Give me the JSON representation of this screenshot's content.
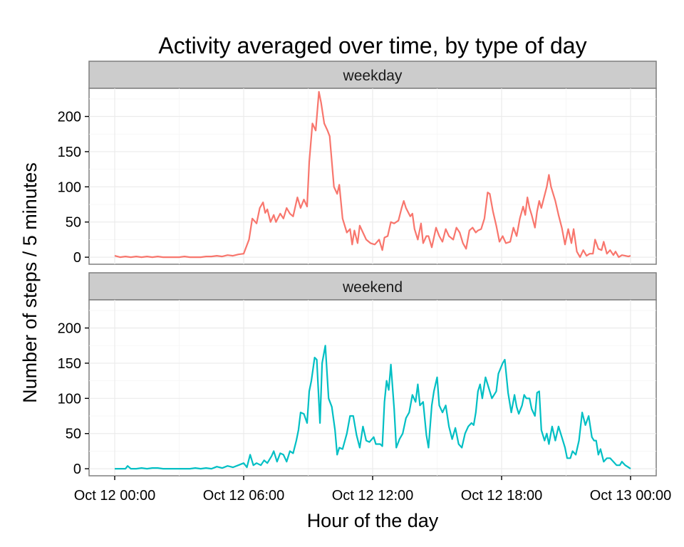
{
  "chart_data": {
    "type": "line",
    "title": "Activity averaged over time, by type of day",
    "xlabel": "Hour of the day",
    "ylabel": "Number of steps / 5 minutes",
    "xlim": [
      0,
      24
    ],
    "ylim": [
      -10,
      240
    ],
    "x_ticks": [
      {
        "value": 0,
        "label": "Oct 12 00:00"
      },
      {
        "value": 6,
        "label": "Oct 12 06:00"
      },
      {
        "value": 12,
        "label": "Oct 12 12:00"
      },
      {
        "value": 18,
        "label": "Oct 12 18:00"
      },
      {
        "value": 24,
        "label": "Oct 13 00:00"
      }
    ],
    "y_ticks": [
      0,
      50,
      100,
      150,
      200
    ],
    "grid": true,
    "legend": "none",
    "series": [
      {
        "name": "weekday",
        "color": "#F8766D",
        "points": [
          [
            0,
            2
          ],
          [
            0.25,
            0
          ],
          [
            0.5,
            1
          ],
          [
            0.75,
            0
          ],
          [
            1,
            1
          ],
          [
            1.25,
            0
          ],
          [
            1.5,
            1
          ],
          [
            1.75,
            0
          ],
          [
            2,
            1
          ],
          [
            2.25,
            0
          ],
          [
            2.5,
            0
          ],
          [
            2.75,
            0
          ],
          [
            3,
            0
          ],
          [
            3.25,
            1
          ],
          [
            3.5,
            0
          ],
          [
            3.75,
            0
          ],
          [
            4,
            0
          ],
          [
            4.25,
            1
          ],
          [
            4.5,
            1
          ],
          [
            4.75,
            2
          ],
          [
            5,
            1
          ],
          [
            5.25,
            3
          ],
          [
            5.5,
            2
          ],
          [
            5.75,
            4
          ],
          [
            6,
            5
          ],
          [
            6.25,
            25
          ],
          [
            6.4,
            55
          ],
          [
            6.6,
            48
          ],
          [
            6.75,
            70
          ],
          [
            6.9,
            78
          ],
          [
            7,
            63
          ],
          [
            7.1,
            68
          ],
          [
            7.25,
            50
          ],
          [
            7.4,
            60
          ],
          [
            7.5,
            50
          ],
          [
            7.7,
            62
          ],
          [
            7.85,
            55
          ],
          [
            8,
            70
          ],
          [
            8.15,
            62
          ],
          [
            8.3,
            58
          ],
          [
            8.5,
            85
          ],
          [
            8.65,
            70
          ],
          [
            8.8,
            82
          ],
          [
            8.95,
            72
          ],
          [
            9.05,
            135
          ],
          [
            9.2,
            190
          ],
          [
            9.35,
            180
          ],
          [
            9.5,
            235
          ],
          [
            9.6,
            220
          ],
          [
            9.75,
            190
          ],
          [
            9.9,
            180
          ],
          [
            10,
            172
          ],
          [
            10.2,
            100
          ],
          [
            10.35,
            90
          ],
          [
            10.45,
            103
          ],
          [
            10.6,
            55
          ],
          [
            10.8,
            35
          ],
          [
            10.95,
            40
          ],
          [
            11.05,
            18
          ],
          [
            11.15,
            38
          ],
          [
            11.3,
            20
          ],
          [
            11.4,
            45
          ],
          [
            11.55,
            35
          ],
          [
            11.7,
            25
          ],
          [
            11.9,
            20
          ],
          [
            12.1,
            18
          ],
          [
            12.3,
            25
          ],
          [
            12.45,
            10
          ],
          [
            12.55,
            28
          ],
          [
            12.7,
            30
          ],
          [
            12.85,
            50
          ],
          [
            13,
            48
          ],
          [
            13.2,
            52
          ],
          [
            13.35,
            70
          ],
          [
            13.45,
            80
          ],
          [
            13.55,
            70
          ],
          [
            13.75,
            58
          ],
          [
            13.85,
            62
          ],
          [
            13.95,
            40
          ],
          [
            14.1,
            25
          ],
          [
            14.25,
            48
          ],
          [
            14.35,
            20
          ],
          [
            14.5,
            30
          ],
          [
            14.6,
            30
          ],
          [
            14.75,
            14
          ],
          [
            14.95,
            42
          ],
          [
            15.1,
            30
          ],
          [
            15.25,
            22
          ],
          [
            15.4,
            40
          ],
          [
            15.55,
            30
          ],
          [
            15.75,
            25
          ],
          [
            15.9,
            42
          ],
          [
            16.05,
            35
          ],
          [
            16.2,
            20
          ],
          [
            16.35,
            12
          ],
          [
            16.5,
            38
          ],
          [
            16.65,
            42
          ],
          [
            16.8,
            35
          ],
          [
            16.9,
            38
          ],
          [
            17.05,
            40
          ],
          [
            17.2,
            55
          ],
          [
            17.35,
            92
          ],
          [
            17.45,
            90
          ],
          [
            17.6,
            65
          ],
          [
            17.75,
            45
          ],
          [
            17.9,
            22
          ],
          [
            18.05,
            30
          ],
          [
            18.2,
            20
          ],
          [
            18.4,
            22
          ],
          [
            18.55,
            42
          ],
          [
            18.7,
            30
          ],
          [
            18.85,
            55
          ],
          [
            19,
            72
          ],
          [
            19.1,
            60
          ],
          [
            19.2,
            85
          ],
          [
            19.3,
            70
          ],
          [
            19.4,
            60
          ],
          [
            19.55,
            42
          ],
          [
            19.65,
            65
          ],
          [
            19.75,
            80
          ],
          [
            19.85,
            70
          ],
          [
            19.95,
            82
          ],
          [
            20.1,
            100
          ],
          [
            20.2,
            117
          ],
          [
            20.3,
            100
          ],
          [
            20.5,
            80
          ],
          [
            20.65,
            60
          ],
          [
            20.8,
            42
          ],
          [
            20.95,
            18
          ],
          [
            21.1,
            40
          ],
          [
            21.25,
            20
          ],
          [
            21.35,
            40
          ],
          [
            21.5,
            8
          ],
          [
            21.65,
            0
          ],
          [
            21.8,
            10
          ],
          [
            21.95,
            2
          ],
          [
            22.1,
            5
          ],
          [
            22.25,
            5
          ],
          [
            22.35,
            25
          ],
          [
            22.5,
            12
          ],
          [
            22.65,
            10
          ],
          [
            22.75,
            22
          ],
          [
            22.9,
            5
          ],
          [
            23.05,
            10
          ],
          [
            23.2,
            3
          ],
          [
            23.3,
            8
          ],
          [
            23.45,
            0
          ],
          [
            23.6,
            3
          ],
          [
            23.75,
            2
          ],
          [
            23.9,
            1
          ],
          [
            24,
            2
          ]
        ]
      },
      {
        "name": "weekend",
        "color": "#00BFC4",
        "points": [
          [
            0,
            0
          ],
          [
            0.25,
            0
          ],
          [
            0.5,
            0
          ],
          [
            0.6,
            4
          ],
          [
            0.75,
            0
          ],
          [
            1,
            0
          ],
          [
            1.25,
            1
          ],
          [
            1.5,
            0
          ],
          [
            1.75,
            1
          ],
          [
            2,
            1
          ],
          [
            2.25,
            0
          ],
          [
            2.5,
            0
          ],
          [
            2.75,
            0
          ],
          [
            3,
            0
          ],
          [
            3.25,
            0
          ],
          [
            3.5,
            0
          ],
          [
            3.75,
            1
          ],
          [
            4,
            0
          ],
          [
            4.25,
            1
          ],
          [
            4.5,
            0
          ],
          [
            4.75,
            3
          ],
          [
            5,
            1
          ],
          [
            5.25,
            4
          ],
          [
            5.5,
            2
          ],
          [
            5.75,
            5
          ],
          [
            6,
            8
          ],
          [
            6.15,
            2
          ],
          [
            6.3,
            20
          ],
          [
            6.45,
            5
          ],
          [
            6.6,
            8
          ],
          [
            6.8,
            5
          ],
          [
            6.95,
            12
          ],
          [
            7.1,
            8
          ],
          [
            7.3,
            18
          ],
          [
            7.4,
            25
          ],
          [
            7.55,
            10
          ],
          [
            7.7,
            22
          ],
          [
            7.85,
            20
          ],
          [
            8,
            10
          ],
          [
            8.15,
            25
          ],
          [
            8.3,
            22
          ],
          [
            8.45,
            40
          ],
          [
            8.55,
            55
          ],
          [
            8.65,
            80
          ],
          [
            8.8,
            78
          ],
          [
            8.95,
            65
          ],
          [
            9.05,
            110
          ],
          [
            9.15,
            125
          ],
          [
            9.3,
            158
          ],
          [
            9.4,
            155
          ],
          [
            9.55,
            65
          ],
          [
            9.65,
            150
          ],
          [
            9.8,
            175
          ],
          [
            9.95,
            100
          ],
          [
            10.1,
            88
          ],
          [
            10.25,
            55
          ],
          [
            10.35,
            20
          ],
          [
            10.45,
            30
          ],
          [
            10.6,
            28
          ],
          [
            10.8,
            50
          ],
          [
            10.95,
            75
          ],
          [
            11.1,
            75
          ],
          [
            11.25,
            48
          ],
          [
            11.4,
            30
          ],
          [
            11.55,
            60
          ],
          [
            11.7,
            40
          ],
          [
            11.85,
            38
          ],
          [
            12.05,
            45
          ],
          [
            12.15,
            35
          ],
          [
            12.35,
            35
          ],
          [
            12.45,
            32
          ],
          [
            12.55,
            95
          ],
          [
            12.65,
            125
          ],
          [
            12.75,
            112
          ],
          [
            12.85,
            148
          ],
          [
            13,
            85
          ],
          [
            13.1,
            30
          ],
          [
            13.25,
            42
          ],
          [
            13.4,
            50
          ],
          [
            13.55,
            72
          ],
          [
            13.7,
            80
          ],
          [
            13.85,
            105
          ],
          [
            14,
            95
          ],
          [
            14.1,
            120
          ],
          [
            14.2,
            90
          ],
          [
            14.35,
            95
          ],
          [
            14.5,
            48
          ],
          [
            14.6,
            30
          ],
          [
            14.75,
            90
          ],
          [
            14.85,
            110
          ],
          [
            15,
            130
          ],
          [
            15.1,
            90
          ],
          [
            15.25,
            80
          ],
          [
            15.4,
            90
          ],
          [
            15.55,
            60
          ],
          [
            15.7,
            42
          ],
          [
            15.85,
            58
          ],
          [
            16,
            35
          ],
          [
            16.15,
            30
          ],
          [
            16.3,
            50
          ],
          [
            16.45,
            60
          ],
          [
            16.6,
            65
          ],
          [
            16.7,
            62
          ],
          [
            16.8,
            80
          ],
          [
            16.9,
            110
          ],
          [
            17,
            120
          ],
          [
            17.1,
            100
          ],
          [
            17.25,
            130
          ],
          [
            17.4,
            115
          ],
          [
            17.55,
            100
          ],
          [
            17.75,
            110
          ],
          [
            17.85,
            135
          ],
          [
            18.05,
            150
          ],
          [
            18.15,
            155
          ],
          [
            18.3,
            108
          ],
          [
            18.45,
            80
          ],
          [
            18.6,
            105
          ],
          [
            18.7,
            88
          ],
          [
            18.8,
            78
          ],
          [
            18.95,
            90
          ],
          [
            19.05,
            105
          ],
          [
            19.15,
            100
          ],
          [
            19.3,
            100
          ],
          [
            19.4,
            85
          ],
          [
            19.55,
            75
          ],
          [
            19.65,
            108
          ],
          [
            19.75,
            110
          ],
          [
            19.85,
            55
          ],
          [
            20,
            40
          ],
          [
            20.1,
            50
          ],
          [
            20.2,
            35
          ],
          [
            20.35,
            60
          ],
          [
            20.5,
            40
          ],
          [
            20.65,
            60
          ],
          [
            20.8,
            45
          ],
          [
            20.95,
            30
          ],
          [
            21.05,
            15
          ],
          [
            21.2,
            15
          ],
          [
            21.3,
            25
          ],
          [
            21.45,
            20
          ],
          [
            21.6,
            40
          ],
          [
            21.75,
            80
          ],
          [
            21.9,
            62
          ],
          [
            22.05,
            75
          ],
          [
            22.2,
            45
          ],
          [
            22.3,
            40
          ],
          [
            22.4,
            40
          ],
          [
            22.5,
            20
          ],
          [
            22.6,
            28
          ],
          [
            22.75,
            10
          ],
          [
            22.9,
            15
          ],
          [
            23.05,
            15
          ],
          [
            23.2,
            10
          ],
          [
            23.35,
            5
          ],
          [
            23.5,
            5
          ],
          [
            23.6,
            10
          ],
          [
            23.75,
            5
          ],
          [
            23.9,
            2
          ],
          [
            24,
            0
          ]
        ]
      }
    ]
  }
}
